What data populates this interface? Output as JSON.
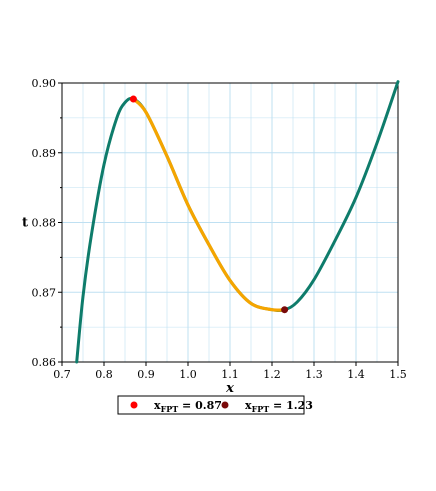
{
  "chart_data": {
    "type": "line",
    "title": "",
    "xlabel": "x",
    "ylabel": "t",
    "xlim": [
      0.7,
      1.5
    ],
    "ylim": [
      0.86,
      0.9
    ],
    "x_ticks": [
      "0.7",
      "0.8",
      "0.9",
      "1.0",
      "1.1",
      "1.2",
      "1.3",
      "1.4",
      "1.5"
    ],
    "y_ticks": [
      "0.86",
      "0.87",
      "0.88",
      "0.89",
      "0.90"
    ],
    "grid": true,
    "legend_placement": "bottom",
    "colors": {
      "curve": "#0e7c6b",
      "highlight": "#f5a500",
      "grid": "#bfe0f2",
      "point_min": "#ff0000",
      "point_max": "#7a0a0a"
    },
    "series": [
      {
        "style": "curve",
        "x": [
          0.735,
          0.75,
          0.77,
          0.8,
          0.83,
          0.85,
          0.87,
          0.9,
          0.95,
          1.0,
          1.05,
          1.1,
          1.15,
          1.2,
          1.23,
          1.26,
          1.3,
          1.35,
          1.4,
          1.45,
          1.5
        ],
        "y": [
          0.86,
          0.8694,
          0.8782,
          0.8883,
          0.8949,
          0.8972,
          0.8977,
          0.8958,
          0.8895,
          0.8825,
          0.8768,
          0.8717,
          0.8684,
          0.8675,
          0.8675,
          0.8686,
          0.8718,
          0.8774,
          0.8836,
          0.8914,
          0.9002
        ]
      },
      {
        "style": "highlight",
        "x_range": [
          0.87,
          1.23
        ]
      }
    ],
    "points": [
      {
        "x": 0.87,
        "y": 0.8977,
        "color": "#ff0000"
      },
      {
        "x": 1.23,
        "y": 0.8675,
        "color": "#7a0a0a"
      }
    ],
    "legend": [
      {
        "label_main": "x",
        "label_sub": "FPT",
        "label_value": " = 0.87",
        "color": "#ff0000"
      },
      {
        "label_main": "x",
        "label_sub": "FPT",
        "label_value": " = 1.23",
        "color": "#7a0a0a"
      }
    ]
  }
}
